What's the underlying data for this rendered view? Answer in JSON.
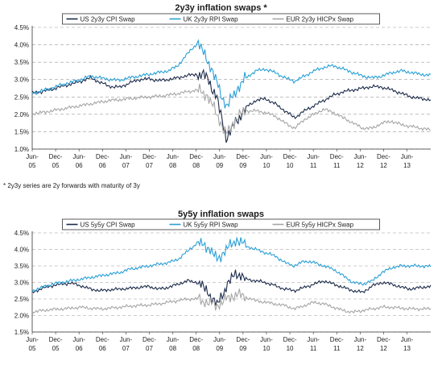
{
  "chart_data": [
    {
      "type": "line",
      "title": "2y3y inflation swaps *",
      "footnote": "* 2y3y series are 2y forwards with maturity of 3y",
      "x_ticks": [
        {
          "l1": "Jun-",
          "l2": "05"
        },
        {
          "l1": "Dec-",
          "l2": "05"
        },
        {
          "l1": "Jun-",
          "l2": "06"
        },
        {
          "l1": "Dec-",
          "l2": "06"
        },
        {
          "l1": "Jun-",
          "l2": "07"
        },
        {
          "l1": "Dec-",
          "l2": "07"
        },
        {
          "l1": "Jun-",
          "l2": "08"
        },
        {
          "l1": "Dec-",
          "l2": "08"
        },
        {
          "l1": "Jun-",
          "l2": "09"
        },
        {
          "l1": "Dec-",
          "l2": "09"
        },
        {
          "l1": "Jun-",
          "l2": "10"
        },
        {
          "l1": "Dec-",
          "l2": "10"
        },
        {
          "l1": "Jun-",
          "l2": "11"
        },
        {
          "l1": "Dec-",
          "l2": "11"
        },
        {
          "l1": "Jun-",
          "l2": "12"
        },
        {
          "l1": "Dec-",
          "l2": "12"
        },
        {
          "l1": "Jun-",
          "l2": "13"
        }
      ],
      "x_range": [
        "Jun-05",
        "Oct-13"
      ],
      "ylim": [
        1.0,
        4.5
      ],
      "y_ticks": [
        "1.0%",
        "1.5%",
        "2.0%",
        "2.5%",
        "3.0%",
        "3.5%",
        "4.0%",
        "4.5%"
      ],
      "y_tick_values": [
        1.0,
        1.5,
        2.0,
        2.5,
        3.0,
        3.5,
        4.0,
        4.5
      ],
      "grid": "horizontal dashed",
      "legend_position": "top",
      "series": [
        {
          "name": "US 2y3y CPI Swap",
          "color": "#1b2a4a",
          "values": [
            2.62,
            2.65,
            2.72,
            2.8,
            2.87,
            2.95,
            3.05,
            2.92,
            2.8,
            2.78,
            2.9,
            3.0,
            3.02,
            2.97,
            3.0,
            3.05,
            3.12,
            3.15,
            3.08,
            2.45,
            1.3,
            1.8,
            2.2,
            2.4,
            2.45,
            2.3,
            2.1,
            1.9,
            2.1,
            2.25,
            2.4,
            2.55,
            2.65,
            2.7,
            2.75,
            2.8,
            2.78,
            2.7,
            2.6,
            2.5,
            2.45,
            2.42
          ]
        },
        {
          "name": "UK 2y3y RPI Swap",
          "color": "#2a9fd6",
          "values": [
            2.6,
            2.68,
            2.75,
            2.85,
            2.92,
            3.0,
            3.1,
            3.05,
            3.0,
            2.98,
            3.05,
            3.1,
            3.15,
            3.2,
            3.25,
            3.4,
            3.75,
            4.05,
            3.6,
            2.9,
            2.2,
            2.7,
            3.05,
            3.25,
            3.3,
            3.2,
            3.05,
            2.95,
            3.1,
            3.25,
            3.35,
            3.4,
            3.3,
            3.2,
            3.1,
            3.05,
            3.1,
            3.2,
            3.25,
            3.2,
            3.15,
            3.12
          ]
        },
        {
          "name": "EUR 2y3y HICPx Swap",
          "color": "#a6a6a6",
          "values": [
            2.02,
            2.05,
            2.1,
            2.15,
            2.2,
            2.25,
            2.3,
            2.35,
            2.4,
            2.42,
            2.45,
            2.48,
            2.5,
            2.52,
            2.55,
            2.6,
            2.65,
            2.7,
            2.55,
            2.0,
            1.4,
            1.9,
            2.1,
            2.1,
            2.05,
            1.95,
            1.75,
            1.6,
            1.85,
            2.0,
            2.15,
            2.05,
            1.9,
            1.75,
            1.6,
            1.6,
            1.75,
            1.8,
            1.7,
            1.65,
            1.6,
            1.55
          ]
        }
      ]
    },
    {
      "type": "line",
      "title": "5y5y inflation swaps",
      "x_ticks": [
        {
          "l1": "Jun-",
          "l2": "05"
        },
        {
          "l1": "Dec-",
          "l2": "05"
        },
        {
          "l1": "Jun-",
          "l2": "06"
        },
        {
          "l1": "Dec-",
          "l2": "06"
        },
        {
          "l1": "Jun-",
          "l2": "07"
        },
        {
          "l1": "Dec-",
          "l2": "07"
        },
        {
          "l1": "Jun-",
          "l2": "08"
        },
        {
          "l1": "Dec-",
          "l2": "08"
        },
        {
          "l1": "Jun-",
          "l2": "09"
        },
        {
          "l1": "Dec-",
          "l2": "09"
        },
        {
          "l1": "Jun-",
          "l2": "10"
        },
        {
          "l1": "Dec-",
          "l2": "10"
        },
        {
          "l1": "Jun-",
          "l2": "11"
        },
        {
          "l1": "Dec-",
          "l2": "11"
        },
        {
          "l1": "Jun-",
          "l2": "12"
        },
        {
          "l1": "Dec-",
          "l2": "12"
        },
        {
          "l1": "Jun-",
          "l2": "13"
        }
      ],
      "x_range": [
        "Jun-05",
        "Oct-13"
      ],
      "ylim": [
        1.5,
        4.5
      ],
      "y_ticks": [
        "1.5%",
        "2.0%",
        "2.5%",
        "3.0%",
        "3.5%",
        "4.0%",
        "4.5%"
      ],
      "y_tick_values": [
        1.5,
        2.0,
        2.5,
        3.0,
        3.5,
        4.0,
        4.5
      ],
      "grid": "horizontal dashed",
      "legend_position": "top",
      "series": [
        {
          "name": "US 5y5y CPI Swap",
          "color": "#1b2a4a",
          "values": [
            2.7,
            2.82,
            2.9,
            2.95,
            2.98,
            2.9,
            2.8,
            2.75,
            2.78,
            2.8,
            2.82,
            2.85,
            2.88,
            2.8,
            2.85,
            2.95,
            3.05,
            3.0,
            2.75,
            2.3,
            2.9,
            3.3,
            3.1,
            3.05,
            3.0,
            2.9,
            2.8,
            2.75,
            2.85,
            2.95,
            3.05,
            2.95,
            2.85,
            2.75,
            2.7,
            2.9,
            3.0,
            2.95,
            2.85,
            2.8,
            2.85,
            2.88
          ]
        },
        {
          "name": "UK 5y5y RPI Swap",
          "color": "#2a9fd6",
          "values": [
            2.75,
            2.85,
            2.95,
            3.0,
            3.05,
            3.1,
            3.15,
            3.2,
            3.25,
            3.3,
            3.4,
            3.45,
            3.5,
            3.55,
            3.6,
            3.7,
            3.95,
            4.2,
            4.1,
            3.7,
            4.0,
            4.3,
            4.1,
            4.0,
            3.9,
            3.8,
            3.6,
            3.5,
            3.65,
            3.6,
            3.5,
            3.4,
            3.2,
            3.0,
            2.95,
            3.05,
            3.3,
            3.45,
            3.5,
            3.5,
            3.5,
            3.48
          ]
        },
        {
          "name": "EUR 5y5y HICPx Swap",
          "color": "#a6a6a6",
          "values": [
            2.1,
            2.15,
            2.18,
            2.2,
            2.22,
            2.25,
            2.22,
            2.2,
            2.22,
            2.25,
            2.28,
            2.3,
            2.32,
            2.35,
            2.4,
            2.45,
            2.5,
            2.5,
            2.4,
            2.3,
            2.5,
            2.65,
            2.55,
            2.45,
            2.4,
            2.35,
            2.3,
            2.2,
            2.3,
            2.4,
            2.35,
            2.25,
            2.15,
            2.1,
            2.15,
            2.2,
            2.25,
            2.25,
            2.22,
            2.2,
            2.2,
            2.2
          ]
        }
      ]
    }
  ]
}
